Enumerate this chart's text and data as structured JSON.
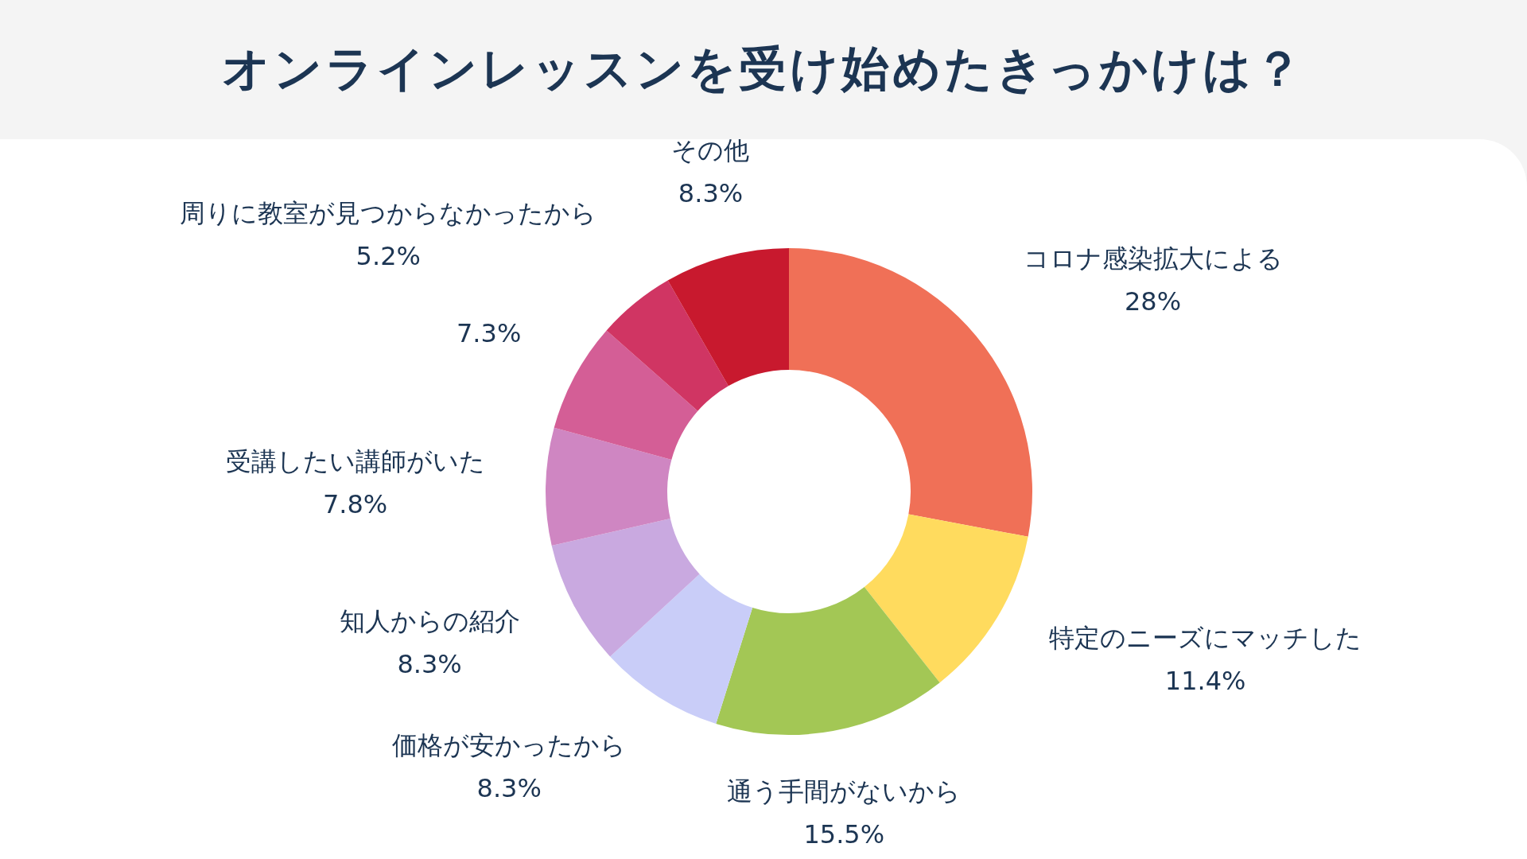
{
  "chart_data": {
    "type": "donut",
    "title": "オンラインレッスンを受け始めたきっかけは？",
    "categories": [
      "コロナ感染拡大による",
      "特定のニーズにマッチした",
      "通う手間がないから",
      "価格が安かったから",
      "知人からの紹介",
      "受講したい講師がいた",
      null,
      "周りに教室が見つからなかったから",
      "その他"
    ],
    "values": [
      28,
      11.4,
      15.5,
      8.3,
      8.3,
      7.8,
      7.3,
      5.2,
      8.3
    ],
    "value_labels": [
      "28%",
      "11.4%",
      "15.5%",
      "8.3%",
      "8.3%",
      "7.8%",
      "7.3%",
      "5.2%",
      "8.3%"
    ],
    "colors": [
      "#f07057",
      "#ffdb5e",
      "#a3c755",
      "#c9cdf8",
      "#c9a9e0",
      "#cf86c2",
      "#d45e96",
      "#d03563",
      "#c8192e"
    ],
    "legend": false
  }
}
